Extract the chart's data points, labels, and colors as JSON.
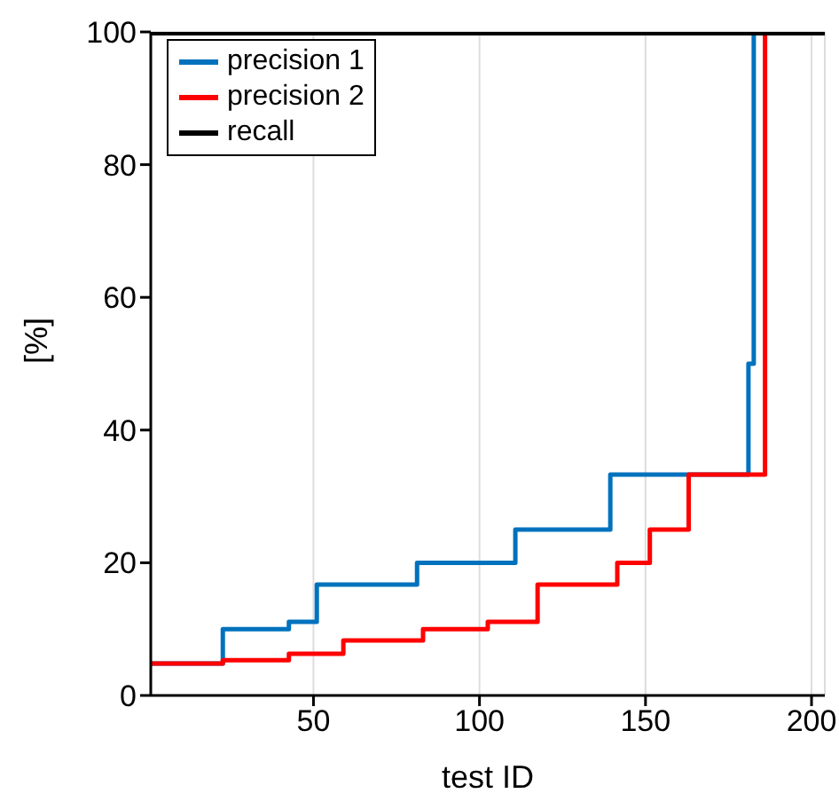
{
  "chart_data": {
    "type": "line",
    "xlabel": "test ID",
    "ylabel": "[%]",
    "xlim": [
      1,
      204
    ],
    "ylim": [
      0,
      100
    ],
    "xticks": [
      50,
      100,
      150,
      200
    ],
    "yticks": [
      0,
      20,
      40,
      60,
      80,
      100
    ],
    "grid": true,
    "legend": "top left",
    "marker": "none",
    "line_style": "solid",
    "series": [
      {
        "name": "precision 1",
        "type": "step",
        "color": "#0072bd",
        "x": [
          1,
          22.7,
          42.6,
          51,
          81.2,
          110.8,
          139.4,
          181,
          182.6
        ],
        "values": [
          4.8,
          10,
          11.1,
          16.7,
          20,
          25,
          33.3,
          50,
          100
        ]
      },
      {
        "name": "precision 2",
        "type": "step",
        "color": "#ff0000",
        "x": [
          1,
          22.7,
          42.6,
          59,
          83,
          102.5,
          117.5,
          141.5,
          151.3,
          163,
          186
        ],
        "values": [
          4.8,
          5.3,
          6.3,
          8.3,
          10,
          11.1,
          16.7,
          20,
          25,
          33.3,
          100
        ]
      },
      {
        "name": "recall",
        "type": "line",
        "color": "#000000",
        "x": [
          1,
          204
        ],
        "values": [
          100,
          100
        ]
      }
    ]
  }
}
